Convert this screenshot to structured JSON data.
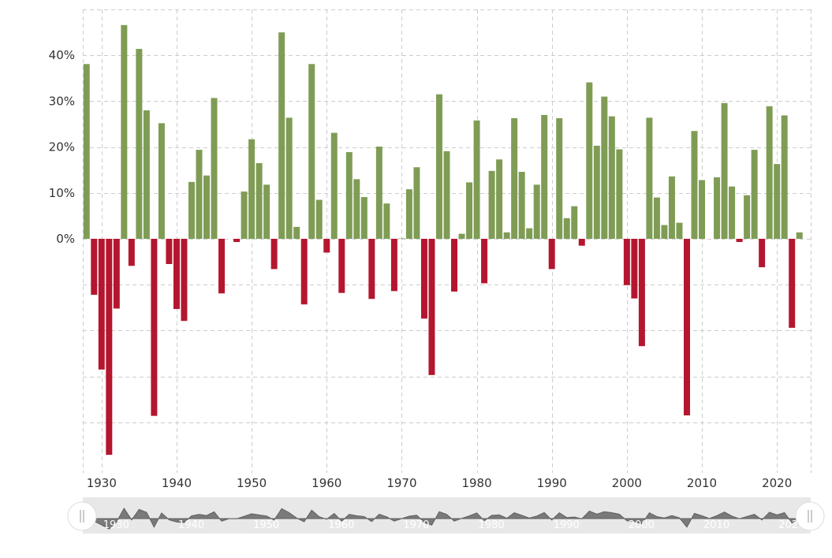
{
  "chart_data": {
    "type": "bar",
    "xlabel": "",
    "ylabel": "",
    "xlim": [
      1927.5,
      2024.5
    ],
    "ylim": [
      -47,
      50
    ],
    "grid": true,
    "positive_color": "#7f9c55",
    "negative_color": "#b5162f",
    "y_ticks": [
      {
        "value": 0,
        "label": "0%"
      },
      {
        "value": 10,
        "label": "10%"
      },
      {
        "value": 20,
        "label": "20%"
      },
      {
        "value": 30,
        "label": "30%"
      },
      {
        "value": 40,
        "label": "40%"
      }
    ],
    "x_ticks": [
      {
        "value": 1930,
        "label": "1930"
      },
      {
        "value": 1940,
        "label": "1940"
      },
      {
        "value": 1950,
        "label": "1950"
      },
      {
        "value": 1960,
        "label": "1960"
      },
      {
        "value": 1970,
        "label": "1970"
      },
      {
        "value": 1980,
        "label": "1980"
      },
      {
        "value": 1990,
        "label": "1990"
      },
      {
        "value": 2000,
        "label": "2000"
      },
      {
        "value": 2010,
        "label": "2010"
      },
      {
        "value": 2020,
        "label": "2020"
      }
    ],
    "years": [
      1928,
      1929,
      1930,
      1931,
      1932,
      1933,
      1934,
      1935,
      1936,
      1937,
      1938,
      1939,
      1940,
      1941,
      1942,
      1943,
      1944,
      1945,
      1946,
      1947,
      1948,
      1949,
      1950,
      1951,
      1952,
      1953,
      1954,
      1955,
      1956,
      1957,
      1958,
      1959,
      1960,
      1961,
      1962,
      1963,
      1964,
      1965,
      1966,
      1967,
      1968,
      1969,
      1970,
      1971,
      1972,
      1973,
      1974,
      1975,
      1976,
      1977,
      1978,
      1979,
      1980,
      1981,
      1982,
      1983,
      1984,
      1985,
      1986,
      1987,
      1988,
      1989,
      1990,
      1991,
      1992,
      1993,
      1994,
      1995,
      1996,
      1997,
      1998,
      1999,
      2000,
      2001,
      2002,
      2003,
      2004,
      2005,
      2006,
      2007,
      2008,
      2009,
      2010,
      2011,
      2012,
      2013,
      2014,
      2015,
      2016,
      2017,
      2018,
      2019,
      2020,
      2021,
      2022,
      2023
    ],
    "values": [
      38.1,
      -12.2,
      -28.5,
      -47.1,
      -15.2,
      46.6,
      -5.9,
      41.4,
      28.0,
      -38.6,
      25.2,
      -5.5,
      -15.3,
      -17.9,
      12.4,
      19.4,
      13.8,
      30.7,
      -11.9,
      0.0,
      -0.7,
      10.3,
      21.7,
      16.5,
      11.8,
      -6.6,
      45.0,
      26.4,
      2.6,
      -14.3,
      38.1,
      8.5,
      -3.0,
      23.1,
      -11.8,
      18.9,
      13.0,
      9.1,
      -13.1,
      20.1,
      7.7,
      -11.4,
      0.1,
      10.8,
      15.6,
      -17.4,
      -29.7,
      31.5,
      19.1,
      -11.5,
      1.1,
      12.3,
      25.8,
      -9.7,
      14.8,
      17.3,
      1.4,
      26.3,
      14.6,
      2.3,
      11.8,
      27.0,
      -6.6,
      26.3,
      4.5,
      7.1,
      -1.5,
      34.1,
      20.3,
      31.0,
      26.7,
      19.5,
      -10.1,
      -13.0,
      -23.4,
      26.4,
      9.0,
      3.0,
      13.6,
      3.5,
      -38.5,
      23.5,
      12.8,
      -0.0,
      13.4,
      29.6,
      11.4,
      -0.7,
      9.5,
      19.4,
      -6.2,
      28.9,
      16.3,
      26.9,
      -19.4,
      1.4
    ]
  }
}
